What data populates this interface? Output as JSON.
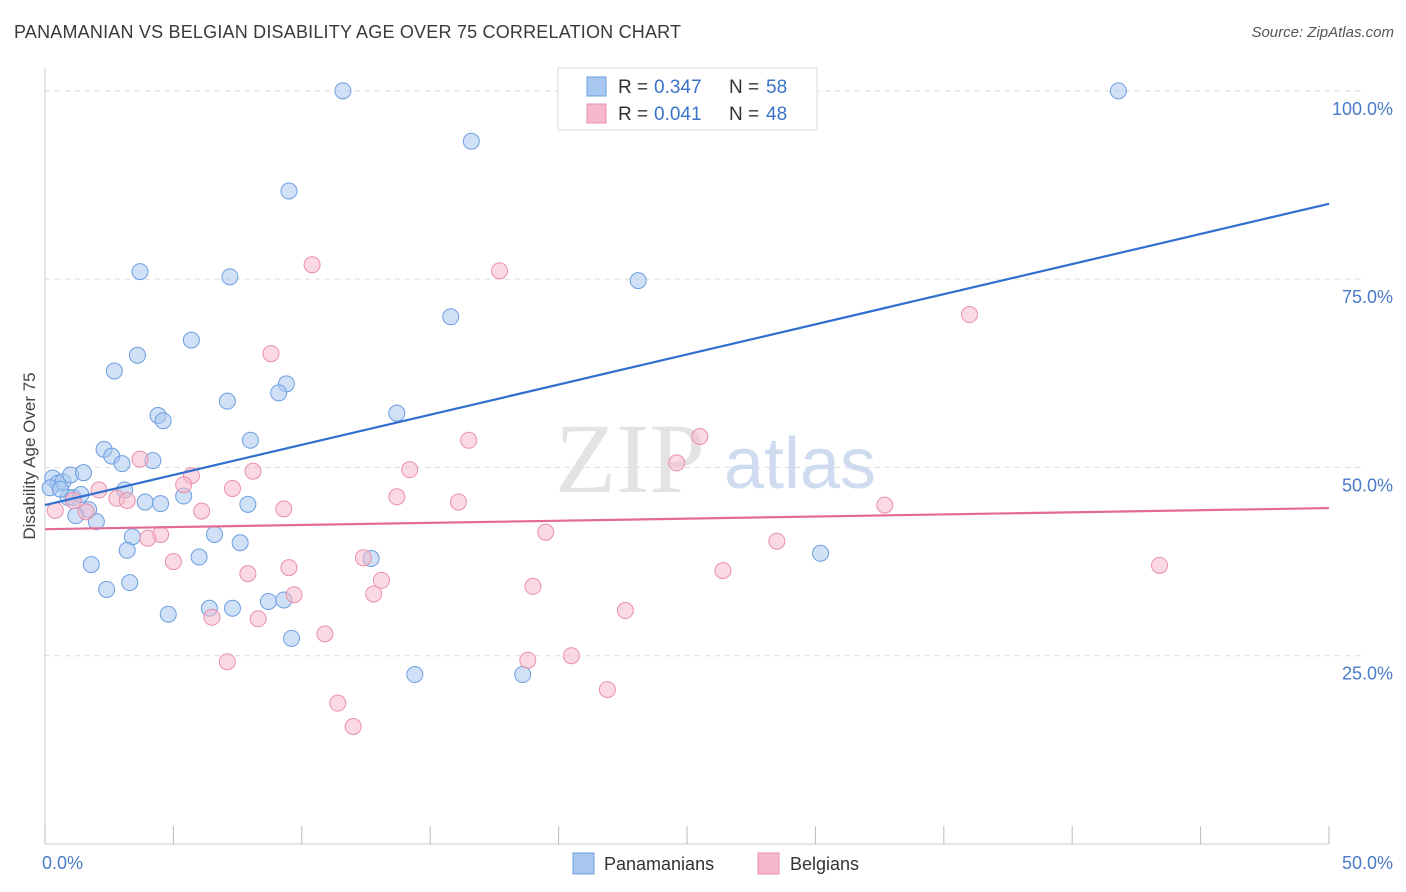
{
  "header": {
    "title": "PANAMANIAN VS BELGIAN DISABILITY AGE OVER 75 CORRELATION CHART",
    "source": "Source: ZipAtlas.com"
  },
  "watermark": {
    "zip": "ZIP",
    "atlas": "atlas"
  },
  "colors": {
    "blue_fill": "#a9c8f0",
    "blue_stroke": "#6c9ee0",
    "blue_line": "#2f6fcf",
    "pink_fill": "#f6b9cc",
    "pink_stroke": "#ea8fab",
    "pink_line": "#e36b93",
    "tick_text": "#4a7ac8",
    "grid": "#d9d9d9"
  },
  "legend": {
    "rows": [
      {
        "r_label": "R = ",
        "r_value": "0.347",
        "n_label": "N = ",
        "n_value": "58"
      },
      {
        "r_label": "R = ",
        "r_value": "0.041",
        "n_label": "N = ",
        "n_value": "48"
      }
    ]
  },
  "chart_data": {
    "type": "scatter",
    "title": "PANAMANIAN VS BELGIAN DISABILITY AGE OVER 75 CORRELATION CHART",
    "xlabel": "",
    "ylabel": "Disability Age Over 75",
    "xlim": [
      0,
      50
    ],
    "ylim": [
      0,
      102.5
    ],
    "x_tick_labels": [
      {
        "value": 0,
        "label": "0.0%"
      },
      {
        "value": 50,
        "label": "50.0%"
      }
    ],
    "x_minor_ticks": [
      0,
      5,
      10,
      15,
      20,
      25,
      30,
      35,
      40,
      45,
      50
    ],
    "y_ticks": [
      {
        "value": 25,
        "label": "25.0%"
      },
      {
        "value": 50,
        "label": "50.0%"
      },
      {
        "value": 75,
        "label": "75.0%"
      },
      {
        "value": 100,
        "label": "100.0%"
      }
    ],
    "grid": true,
    "legend_position": "top-center",
    "series": [
      {
        "name": "Panamanians",
        "color": "#a9c8f0",
        "stroke": "#6c9ee0",
        "trend": {
          "x": [
            0,
            50
          ],
          "y": [
            45.0,
            85.0
          ],
          "color": "#2f6fcf"
        },
        "points": [
          [
            0.3,
            48.6
          ],
          [
            0.5,
            47.9
          ],
          [
            0.7,
            48.1
          ],
          [
            0.2,
            47.3
          ],
          [
            0.9,
            46.0
          ],
          [
            0.6,
            47.1
          ],
          [
            1.1,
            46.0
          ],
          [
            1.4,
            46.4
          ],
          [
            1.7,
            44.4
          ],
          [
            1.2,
            43.6
          ],
          [
            2.0,
            42.8
          ],
          [
            1.0,
            49.0
          ],
          [
            1.5,
            49.3
          ],
          [
            2.3,
            52.4
          ],
          [
            2.6,
            51.5
          ],
          [
            3.0,
            50.5
          ],
          [
            4.2,
            50.9
          ],
          [
            3.1,
            47.0
          ],
          [
            3.9,
            45.4
          ],
          [
            4.5,
            45.2
          ],
          [
            5.4,
            46.2
          ],
          [
            4.4,
            56.9
          ],
          [
            4.6,
            56.2
          ],
          [
            3.6,
            64.9
          ],
          [
            2.7,
            62.8
          ],
          [
            3.7,
            76.0
          ],
          [
            5.7,
            66.9
          ],
          [
            7.2,
            75.3
          ],
          [
            7.1,
            58.8
          ],
          [
            8.0,
            53.6
          ],
          [
            7.9,
            45.1
          ],
          [
            6.6,
            41.1
          ],
          [
            7.6,
            40.0
          ],
          [
            3.4,
            40.8
          ],
          [
            3.2,
            39.0
          ],
          [
            1.8,
            37.1
          ],
          [
            6.0,
            38.1
          ],
          [
            3.3,
            34.7
          ],
          [
            2.4,
            33.8
          ],
          [
            4.8,
            30.5
          ],
          [
            6.4,
            31.3
          ],
          [
            7.3,
            31.3
          ],
          [
            8.7,
            32.2
          ],
          [
            9.3,
            32.4
          ],
          [
            9.6,
            27.3
          ],
          [
            9.5,
            86.7
          ],
          [
            9.4,
            61.1
          ],
          [
            9.1,
            59.9
          ],
          [
            11.6,
            100.0
          ],
          [
            16.6,
            93.3
          ],
          [
            15.8,
            70.0
          ],
          [
            13.7,
            57.2
          ],
          [
            12.7,
            37.9
          ],
          [
            14.4,
            22.5
          ],
          [
            18.6,
            22.5
          ],
          [
            23.1,
            74.8
          ],
          [
            30.2,
            38.6
          ],
          [
            41.8,
            100.0
          ]
        ]
      },
      {
        "name": "Belgians",
        "color": "#f6b9cc",
        "stroke": "#ea8fab",
        "trend": {
          "x": [
            0,
            50
          ],
          "y": [
            41.8,
            44.6
          ],
          "color": "#e36b93"
        },
        "points": [
          [
            0.4,
            44.3
          ],
          [
            1.1,
            45.6
          ],
          [
            1.6,
            44.1
          ],
          [
            2.1,
            47.0
          ],
          [
            2.8,
            45.9
          ],
          [
            3.2,
            45.6
          ],
          [
            3.7,
            51.1
          ],
          [
            4.5,
            41.1
          ],
          [
            4.0,
            40.6
          ],
          [
            5.0,
            37.5
          ],
          [
            5.7,
            48.9
          ],
          [
            5.4,
            47.7
          ],
          [
            6.1,
            44.2
          ],
          [
            7.3,
            47.2
          ],
          [
            6.5,
            30.1
          ],
          [
            7.1,
            24.2
          ],
          [
            7.9,
            35.9
          ],
          [
            8.3,
            29.9
          ],
          [
            8.8,
            65.1
          ],
          [
            9.3,
            44.5
          ],
          [
            9.7,
            33.1
          ],
          [
            9.5,
            36.7
          ],
          [
            10.4,
            76.9
          ],
          [
            10.9,
            27.9
          ],
          [
            11.4,
            18.7
          ],
          [
            12.0,
            15.6
          ],
          [
            12.4,
            38.0
          ],
          [
            12.8,
            33.2
          ],
          [
            13.1,
            35.0
          ],
          [
            13.7,
            46.1
          ],
          [
            14.2,
            49.7
          ],
          [
            16.1,
            45.4
          ],
          [
            16.5,
            53.6
          ],
          [
            17.7,
            76.1
          ],
          [
            18.8,
            24.4
          ],
          [
            19.0,
            34.2
          ],
          [
            19.5,
            41.4
          ],
          [
            21.9,
            20.5
          ],
          [
            22.6,
            31.0
          ],
          [
            24.6,
            50.6
          ],
          [
            25.5,
            54.1
          ],
          [
            26.4,
            36.3
          ],
          [
            28.5,
            40.2
          ],
          [
            32.7,
            45.0
          ],
          [
            36.0,
            70.3
          ],
          [
            43.4,
            37.0
          ],
          [
            20.5,
            25.0
          ],
          [
            8.1,
            49.5
          ]
        ]
      }
    ]
  }
}
